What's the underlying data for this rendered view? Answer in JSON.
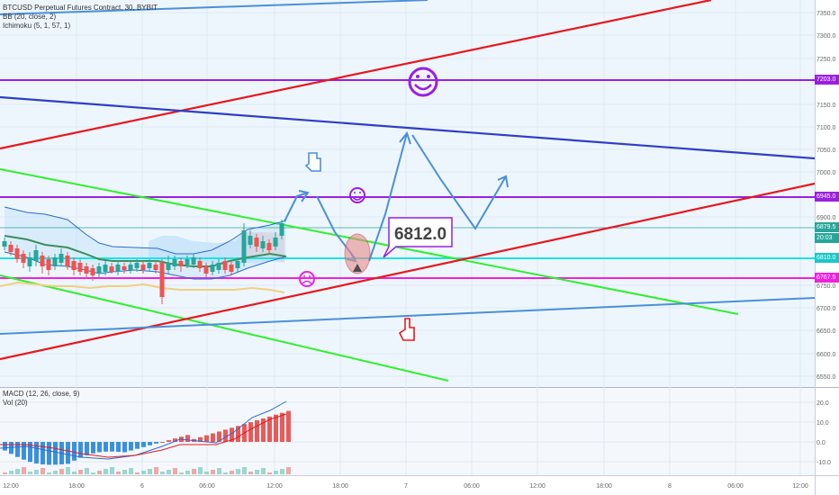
{
  "legend": {
    "symbol": "BTCUSD Perpetual Futures Contract, 30, BYBIT",
    "bb": "BB (20, close, 2)",
    "ichimoku": "Ichimoku (5, 1, 57, 1)",
    "macd": "MACD (12, 26, close, 9)",
    "vol": "Vol (20)"
  },
  "colors": {
    "red": "#e8171d",
    "blue": "#2e3fc4",
    "lightblue": "#4a8fdb",
    "green": "#2ef02e",
    "purple": "#9a1fe0",
    "cyan": "#19e6e6",
    "magenta": "#f020e0",
    "up": "#26a69a",
    "down": "#ef5350"
  },
  "price_axis": {
    "ticks": [
      "7350.0",
      "7300.0",
      "7250.0",
      "7150.0",
      "7100.0",
      "7050.0",
      "7000.0",
      "6900.0",
      "6750.0",
      "6700.0",
      "6650.0",
      "6600.0",
      "6550.0"
    ]
  },
  "macd_axis": {
    "ticks": [
      "20.0",
      "10.0",
      "0.0",
      "-10.0"
    ]
  },
  "price_labels": [
    {
      "text": "7203.0",
      "color": "#9a1fe0"
    },
    {
      "text": "6945.0",
      "color": "#9a1fe0"
    },
    {
      "text": "6879.5",
      "color": "#26a69a"
    },
    {
      "text": "20:03",
      "color": "#26a69a"
    },
    {
      "text": "6810.0",
      "color": "#19c8c8"
    },
    {
      "text": "6767.5",
      "color": "#f020e0"
    }
  ],
  "time_axis": {
    "labels": [
      "12:00",
      "18:00",
      "6",
      "06:00",
      "12:00",
      "18:00",
      "7",
      "06:00",
      "12:00",
      "18:00",
      "8",
      "06:00",
      "12:00"
    ]
  },
  "annotation": {
    "price_box": "6812.0"
  }
}
